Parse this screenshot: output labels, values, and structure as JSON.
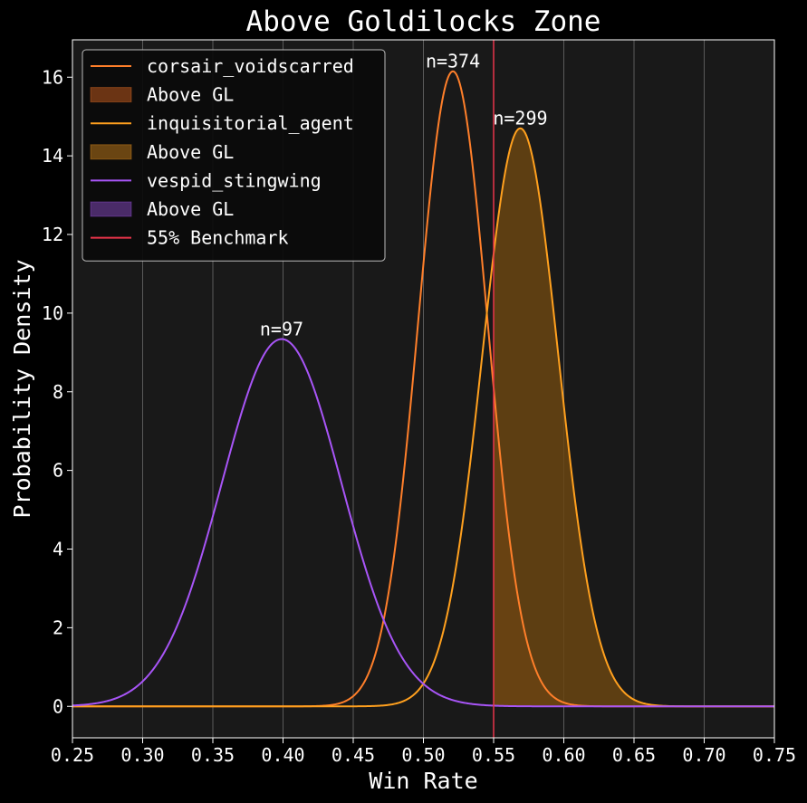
{
  "chart_data": {
    "type": "line",
    "title": "Above Goldilocks Zone",
    "xlabel": "Win Rate",
    "ylabel": "Probability Density",
    "xlim": [
      0.25,
      0.75
    ],
    "ylim": [
      -0.8,
      16.95
    ],
    "x_ticks": [
      "0.25",
      "0.30",
      "0.35",
      "0.40",
      "0.45",
      "0.50",
      "0.55",
      "0.60",
      "0.65",
      "0.70",
      "0.75"
    ],
    "y_ticks": [
      "0",
      "2",
      "4",
      "6",
      "8",
      "10",
      "12",
      "14",
      "16"
    ],
    "grid": "vertical",
    "legend_position": "top-left",
    "series": [
      {
        "name": "corsair_voidscarred",
        "distribution": "normal",
        "mean": 0.521,
        "peak_density": 16.15,
        "n_label": "n=374",
        "fill_label": "Above GL",
        "color": "#ff7f2a",
        "fill_color": "#6b3414"
      },
      {
        "name": "inquisitorial_agent",
        "distribution": "normal",
        "mean": 0.569,
        "peak_density": 14.7,
        "n_label": "n=299",
        "fill_label": "Above GL",
        "color": "#ffa01e",
        "fill_color": "#6a4512"
      },
      {
        "name": "vespid_stingwing",
        "distribution": "normal",
        "mean": 0.399,
        "peak_density": 9.34,
        "n_label": "n=97",
        "fill_label": "Above GL",
        "color": "#a855f7",
        "fill_color": "#4a2b68"
      }
    ],
    "benchmark": {
      "label": "55% Benchmark",
      "x": 0.55,
      "color": "#e8344a"
    },
    "colors": {
      "background": "#000000",
      "plot_background": "#191919",
      "grid": "#5a5a5a",
      "text": "#ffffff"
    }
  }
}
